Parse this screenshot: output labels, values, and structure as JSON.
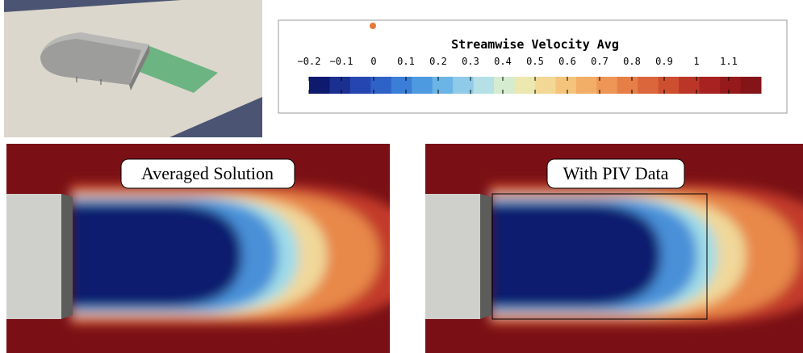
{
  "colorbar": {
    "title": "Streamwise Velocity Avg",
    "ticks": [
      "−0.2",
      "−0.1",
      "0",
      "0.1",
      "0.2",
      "0.3",
      "0.4",
      "0.5",
      "0.6",
      "0.7",
      "0.8",
      "0.9",
      "1",
      "1.1"
    ]
  },
  "panels": [
    {
      "label": "Averaged Solution"
    },
    {
      "label": "With PIV Data"
    }
  ]
}
